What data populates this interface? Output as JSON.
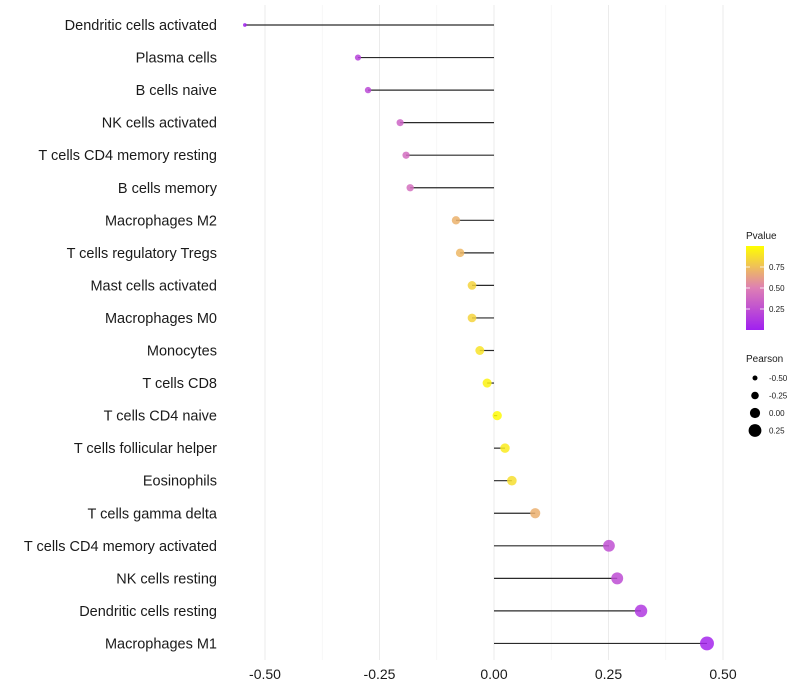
{
  "chart_data": {
    "type": "lollipop",
    "title": "",
    "xlabel": "",
    "ylabel": "",
    "xlim": [
      -0.575,
      0.545
    ],
    "x_ticks": [
      -0.5,
      -0.25,
      0.0,
      0.25,
      0.5
    ],
    "x_tick_labels": [
      "-0.50",
      "-0.25",
      "0.00",
      "0.25",
      "0.50"
    ],
    "grid": true,
    "categories": [
      "Dendritic cells activated",
      "Plasma cells",
      "B cells naive",
      "NK cells activated",
      "T cells CD4 memory resting",
      "B cells memory",
      "Macrophages M2",
      "T cells regulatory  Tregs ",
      "Mast cells activated",
      "Macrophages M0",
      "Monocytes",
      "T cells CD8",
      "T cells CD4 naive",
      "T cells follicular helper",
      "Eosinophils",
      "T cells gamma delta",
      "T cells CD4 memory activated",
      "NK cells resting",
      "Dendritic cells resting",
      "Macrophages M1"
    ],
    "pearson": [
      -0.544,
      -0.297,
      -0.275,
      -0.205,
      -0.192,
      -0.183,
      -0.083,
      -0.074,
      -0.048,
      -0.048,
      -0.031,
      -0.015,
      0.007,
      0.024,
      0.039,
      0.09,
      0.251,
      0.269,
      0.321,
      0.465
    ],
    "pvalue": [
      0.01,
      0.18,
      0.22,
      0.36,
      0.4,
      0.42,
      0.7,
      0.72,
      0.83,
      0.83,
      0.89,
      0.95,
      0.98,
      0.92,
      0.87,
      0.69,
      0.25,
      0.23,
      0.13,
      0.03
    ],
    "legend": {
      "color": {
        "title": "Pvalue",
        "ticks": [
          0.25,
          0.5,
          0.75
        ],
        "tick_labels": [
          "0.25",
          "0.50",
          "0.75"
        ],
        "range": [
          0.0,
          1.0
        ],
        "low_color": "#a020f0",
        "mid_color": "#de7fb4",
        "high_color": "#ffff00"
      },
      "size": {
        "title": "Pearson",
        "values": [
          -0.5,
          -0.25,
          0.0,
          0.25
        ],
        "labels": [
          "-0.50",
          "-0.25",
          "0.00",
          "0.25"
        ]
      },
      "placement": "right"
    }
  }
}
